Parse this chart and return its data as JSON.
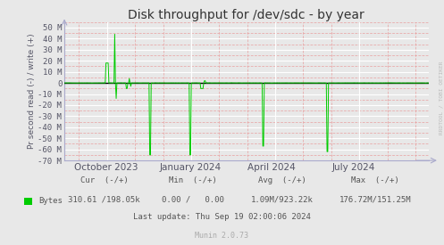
{
  "title": "Disk throughput for /dev/sdc - by year",
  "ylabel": "Pr second read (-) / write (+)",
  "xlabel_ticks": [
    "October 2023",
    "January 2024",
    "April 2024",
    "July 2024"
  ],
  "ylim": [
    -70000000,
    55000000
  ],
  "yticks": [
    -70000000,
    -60000000,
    -50000000,
    -40000000,
    -30000000,
    -20000000,
    -10000000,
    0,
    10000000,
    20000000,
    30000000,
    40000000,
    50000000
  ],
  "ytick_labels": [
    "-70 M",
    "-60 M",
    "-50 M",
    "-40 M",
    "-30 M",
    "-20 M",
    "-10 M",
    "0",
    "10 M",
    "20 M",
    "30 M",
    "40 M",
    "50 M"
  ],
  "bg_color": "#e8e8e8",
  "plot_bg_color": "#e8e8e8",
  "grid_color_major": "#ffffff",
  "grid_color_minor": "#e8a0a0",
  "line_color": "#00cc00",
  "zero_line_color": "#000000",
  "title_color": "#333333",
  "watermark": "RRDTOOL / TOBI OETIKER",
  "legend_label": "Bytes",
  "legend_cur": "310.61 /198.05k",
  "legend_min": "0.00 /   0.00",
  "legend_avg": "1.09M/923.22k",
  "legend_max": "176.72M/151.25M",
  "last_update": "Last update: Thu Sep 19 02:00:06 2024",
  "munin_version": "Munin 2.0.73",
  "arrow_color": "#aaaacc",
  "tick_color": "#555566",
  "spine_color": "#aaaacc"
}
